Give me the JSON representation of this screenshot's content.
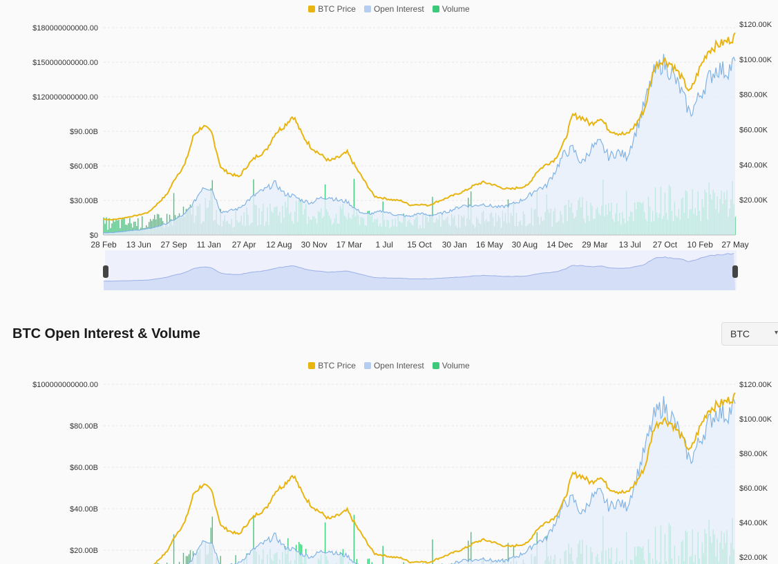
{
  "legend": [
    {
      "label": "BTC Price",
      "color": "#e8b40f"
    },
    {
      "label": "Open Interest",
      "color": "#b5cdf0"
    },
    {
      "label": "Volume",
      "color": "#3cc97a"
    }
  ],
  "section": {
    "title": "BTC Open Interest & Volume",
    "unit_select": "BTC"
  },
  "chart_data": [
    {
      "type": "line",
      "title": "",
      "x_ticks": [
        "28 Feb",
        "13 Jun",
        "27 Sep",
        "11 Jan",
        "27 Apr",
        "12 Aug",
        "30 Nov",
        "17 Mar",
        "1 Jul",
        "15 Oct",
        "30 Jan",
        "16 May",
        "30 Aug",
        "14 Dec",
        "29 Mar",
        "13 Jul",
        "27 Oct",
        "10 Feb",
        "27 May"
      ],
      "y_left_ticks": [
        "$0",
        "$30.00B",
        "$60.00B",
        "$90.00B",
        "$120000000000.00",
        "$150000000000.00",
        "$180000000000.00"
      ],
      "y_left_range": [
        0,
        180000000000
      ],
      "y_right_ticks": [
        "$20.00K",
        "$40.00K",
        "$60.00K",
        "$80.00K",
        "$100.00K",
        "$120.00K"
      ],
      "y_right_range": [
        0,
        120000
      ],
      "grid": true,
      "legend_position": "top-center",
      "series": [
        {
          "name": "BTC Price",
          "axis": "right",
          "values": [
            9000,
            8700,
            9500,
            10500,
            11500,
            13000,
            18000,
            23000,
            33000,
            40000,
            57000,
            62000,
            58000,
            38000,
            35000,
            33000,
            40000,
            45000,
            48000,
            58000,
            62000,
            68000,
            57000,
            50000,
            46000,
            42000,
            44000,
            47000,
            38000,
            30000,
            22000,
            21000,
            20000,
            19500,
            17000,
            17500,
            16800,
            19000,
            21000,
            23000,
            25000,
            28000,
            30000,
            29000,
            27000,
            26000,
            27000,
            28000,
            36000,
            40000,
            43000,
            52000,
            68000,
            67000,
            63000,
            67000,
            60000,
            58000,
            57000,
            63000,
            72000,
            95000,
            100000,
            97000,
            90000,
            81000,
            94000,
            105000,
            108000,
            110000,
            113000
          ]
        },
        {
          "name": "Open Interest",
          "axis": "left",
          "values": [
            2000000000,
            2200000000,
            3000000000,
            3800000000,
            4500000000,
            5500000000,
            7500000000,
            10000000000,
            14000000000,
            18000000000,
            28000000000,
            42000000000,
            40000000000,
            20000000000,
            21000000000,
            23000000000,
            30000000000,
            36000000000,
            40000000000,
            45000000000,
            36000000000,
            34000000000,
            30000000000,
            28000000000,
            32000000000,
            33000000000,
            30000000000,
            29000000000,
            22000000000,
            18000000000,
            19000000000,
            21000000000,
            18000000000,
            17000000000,
            16000000000,
            19000000000,
            17000000000,
            18000000000,
            20000000000,
            23000000000,
            26000000000,
            25000000000,
            27000000000,
            25000000000,
            24000000000,
            26000000000,
            29000000000,
            33000000000,
            40000000000,
            42000000000,
            55000000000,
            70000000000,
            75000000000,
            62000000000,
            75000000000,
            80000000000,
            68000000000,
            72000000000,
            68000000000,
            90000000000,
            115000000000,
            140000000000,
            150000000000,
            140000000000,
            125000000000,
            105000000000,
            120000000000,
            135000000000,
            145000000000,
            142000000000,
            150000000000
          ]
        },
        {
          "name": "Volume",
          "axis": "left",
          "type": "bar"
        }
      ]
    },
    {
      "type": "line",
      "title": "",
      "y_left_ticks": [
        "$20.00B",
        "$40.00B",
        "$60.00B",
        "$80.00B",
        "$100000000000.00"
      ],
      "y_left_range": [
        0,
        100000000000
      ],
      "y_right_ticks": [
        "$20.00K",
        "$40.00K",
        "$60.00K",
        "$80.00K",
        "$100.00K",
        "$120.00K"
      ],
      "y_right_range": [
        0,
        120000
      ],
      "grid": true,
      "legend_position": "top-center",
      "series": [
        {
          "name": "BTC Price",
          "axis": "right"
        },
        {
          "name": "Open Interest",
          "axis": "left"
        },
        {
          "name": "Volume",
          "axis": "left",
          "type": "bar"
        }
      ]
    }
  ]
}
